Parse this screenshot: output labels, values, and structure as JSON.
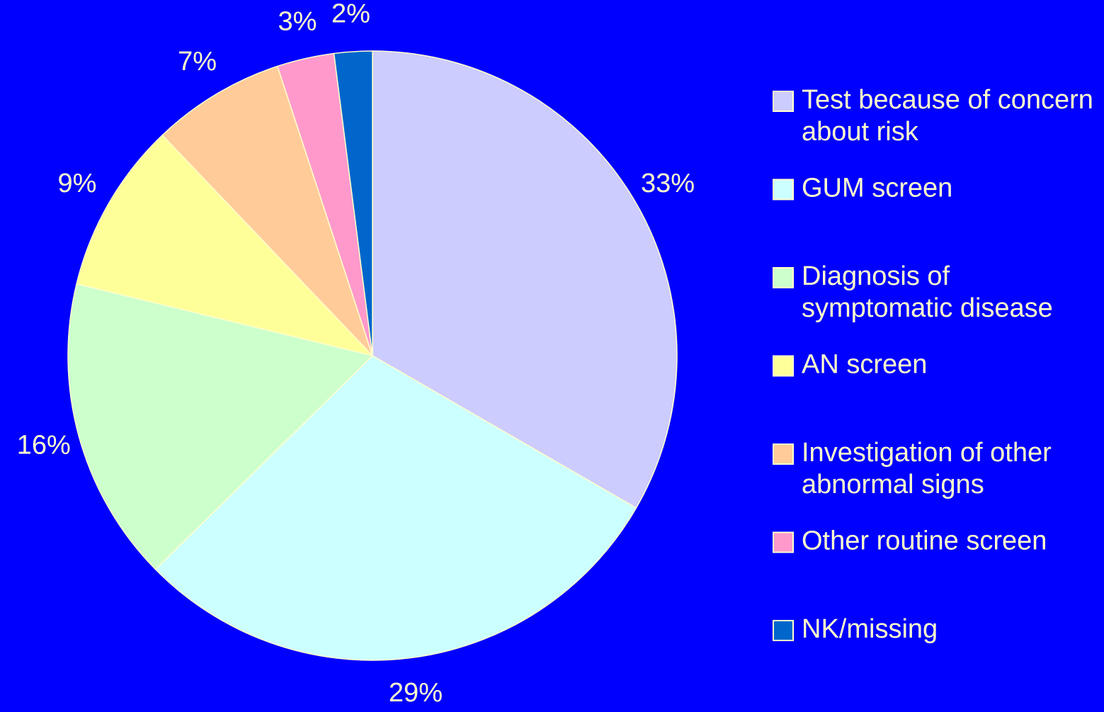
{
  "chart_data": {
    "type": "pie",
    "categories": [
      "Test because of concern about risk",
      "GUM screen",
      "Diagnosis of symptomatic disease",
      "AN screen",
      "Investigation of other abnormal signs",
      "Other routine screen",
      "NK/missing"
    ],
    "values": [
      33,
      29,
      16,
      9,
      7,
      3,
      2
    ],
    "value_labels": [
      "33%",
      "29%",
      "16%",
      "9%",
      "7%",
      "3%",
      "2%"
    ],
    "colors": [
      "#ccccff",
      "#ccffff",
      "#ccffcc",
      "#ffff99",
      "#ffcc99",
      "#ff99cc",
      "#0066cc"
    ],
    "legend": "right"
  }
}
